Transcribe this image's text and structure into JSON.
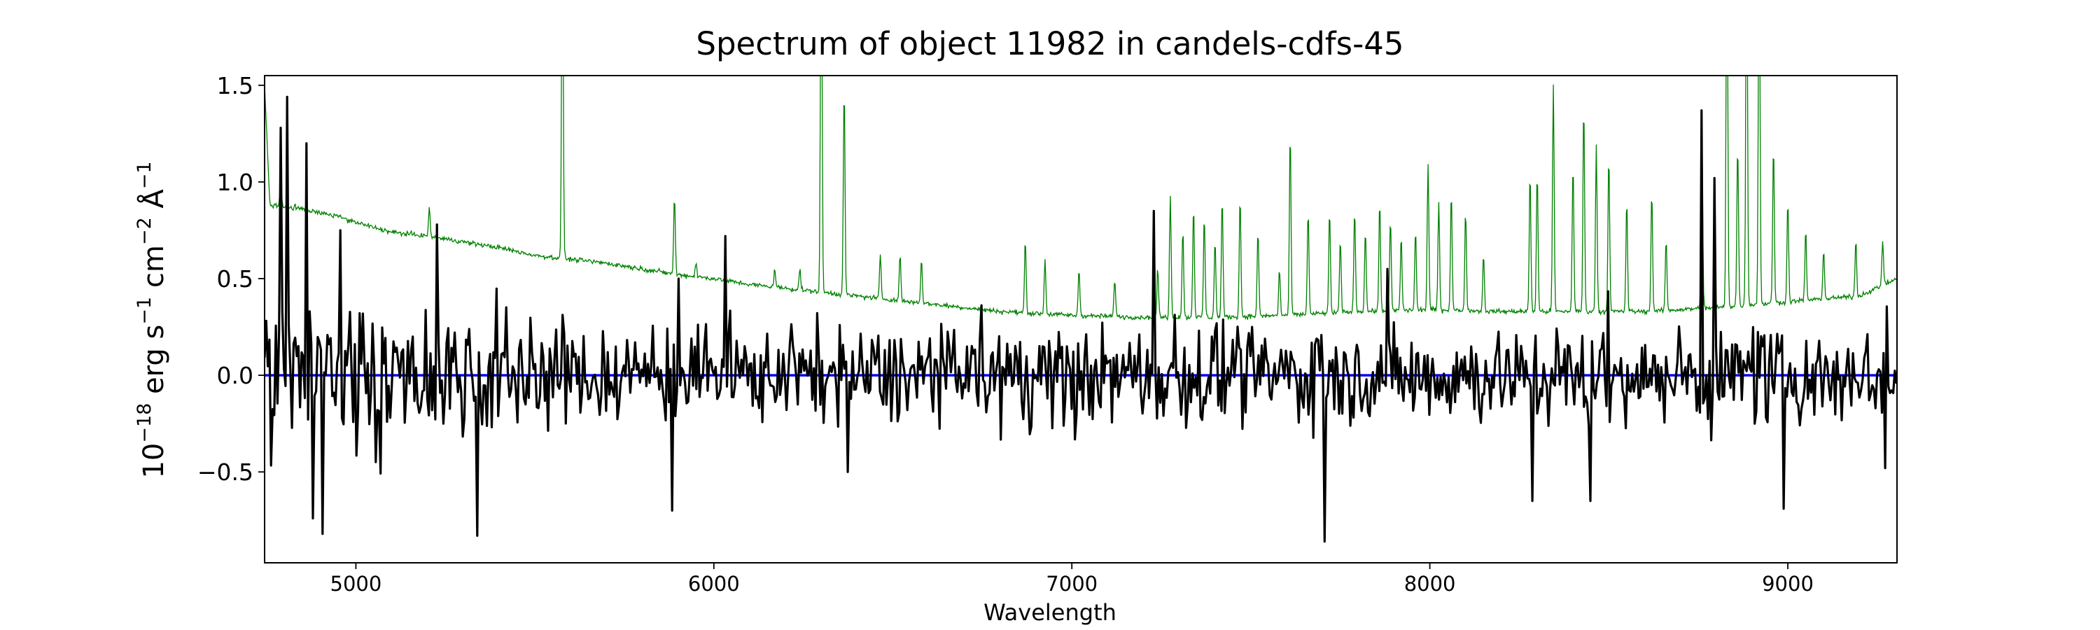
{
  "chart_data": {
    "type": "line",
    "title": "Spectrum of object 11982 in candels-cdfs-45",
    "xlabel": "Wavelength",
    "ylabel": {
      "base": "10",
      "exp": "−18",
      "p1": " erg s",
      "e1": "−1",
      "p2": " cm",
      "e2": "−2",
      "p3": " Å",
      "e3": "−1"
    },
    "xlim": [
      4745,
      9305
    ],
    "ylim": [
      -0.97,
      1.55
    ],
    "x_ticks": [
      5000,
      6000,
      7000,
      8000,
      9000
    ],
    "x_tick_labels": [
      "5000",
      "6000",
      "7000",
      "8000",
      "9000"
    ],
    "y_ticks": [
      -0.5,
      0.0,
      0.5,
      1.0,
      1.5
    ],
    "y_tick_labels": [
      "−0.5",
      "0.0",
      "0.5",
      "1.0",
      "1.5"
    ],
    "grid": false,
    "series": [
      {
        "role": "continuum",
        "color": "#008000",
        "points": [
          [
            4745,
            1.5
          ],
          [
            4760,
            0.88
          ],
          [
            4800,
            0.87
          ],
          [
            4850,
            0.86
          ],
          [
            4900,
            0.84
          ],
          [
            4950,
            0.82
          ],
          [
            5000,
            0.79
          ],
          [
            5100,
            0.74
          ],
          [
            5200,
            0.72
          ],
          [
            5300,
            0.69
          ],
          [
            5400,
            0.66
          ],
          [
            5500,
            0.62
          ],
          [
            5600,
            0.6
          ],
          [
            5700,
            0.58
          ],
          [
            5800,
            0.55
          ],
          [
            5900,
            0.52
          ],
          [
            6000,
            0.5
          ],
          [
            6100,
            0.47
          ],
          [
            6200,
            0.45
          ],
          [
            6300,
            0.43
          ],
          [
            6400,
            0.41
          ],
          [
            6500,
            0.39
          ],
          [
            6600,
            0.37
          ],
          [
            6700,
            0.35
          ],
          [
            6800,
            0.33
          ],
          [
            7000,
            0.31
          ],
          [
            7200,
            0.3
          ],
          [
            7400,
            0.3
          ],
          [
            7600,
            0.31
          ],
          [
            7800,
            0.33
          ],
          [
            8000,
            0.34
          ],
          [
            8200,
            0.33
          ],
          [
            8400,
            0.33
          ],
          [
            8600,
            0.33
          ],
          [
            8800,
            0.35
          ],
          [
            9000,
            0.38
          ],
          [
            9200,
            0.41
          ],
          [
            9305,
            0.5
          ]
        ],
        "emission_lines": [
          [
            4790,
            1.0
          ],
          [
            4830,
            0.88
          ],
          [
            4862,
            0.86
          ],
          [
            5205,
            0.86
          ],
          [
            5577,
            2.5
          ],
          [
            5890,
            0.92
          ],
          [
            5950,
            0.58
          ],
          [
            6170,
            0.55
          ],
          [
            6240,
            0.55
          ],
          [
            6300,
            2.5
          ],
          [
            6364,
            1.5
          ],
          [
            6465,
            0.62
          ],
          [
            6520,
            0.62
          ],
          [
            6580,
            0.6
          ],
          [
            6870,
            0.7
          ],
          [
            6925,
            0.6
          ],
          [
            7020,
            0.55
          ],
          [
            7120,
            0.5
          ],
          [
            7240,
            0.55
          ],
          [
            7275,
            0.93
          ],
          [
            7310,
            0.75
          ],
          [
            7340,
            0.88
          ],
          [
            7370,
            0.82
          ],
          [
            7400,
            0.7
          ],
          [
            7420,
            0.92
          ],
          [
            7470,
            0.92
          ],
          [
            7520,
            0.75
          ],
          [
            7580,
            0.55
          ],
          [
            7610,
            1.25
          ],
          [
            7660,
            0.85
          ],
          [
            7720,
            0.85
          ],
          [
            7750,
            0.7
          ],
          [
            7790,
            0.86
          ],
          [
            7820,
            0.75
          ],
          [
            7860,
            0.9
          ],
          [
            7890,
            0.8
          ],
          [
            7920,
            0.72
          ],
          [
            7960,
            0.75
          ],
          [
            7995,
            1.1
          ],
          [
            8025,
            0.9
          ],
          [
            8060,
            0.95
          ],
          [
            8100,
            0.85
          ],
          [
            8150,
            0.62
          ],
          [
            8280,
            1.05
          ],
          [
            8300,
            1.05
          ],
          [
            8345,
            1.5
          ],
          [
            8400,
            1.1
          ],
          [
            8430,
            1.4
          ],
          [
            8465,
            1.2
          ],
          [
            8500,
            1.15
          ],
          [
            8550,
            0.9
          ],
          [
            8620,
            0.95
          ],
          [
            8660,
            0.7
          ],
          [
            8760,
            1.2
          ],
          [
            8830,
            2.5
          ],
          [
            8860,
            1.2
          ],
          [
            8885,
            2.5
          ],
          [
            8920,
            2.5
          ],
          [
            8960,
            1.2
          ],
          [
            9000,
            0.9
          ],
          [
            9050,
            0.75
          ],
          [
            9100,
            0.65
          ],
          [
            9190,
            0.7
          ],
          [
            9265,
            0.7
          ]
        ]
      },
      {
        "role": "model",
        "color": "#0000ff",
        "value": 0.0
      },
      {
        "role": "flux",
        "color": "#000000",
        "features": [
          [
            4790,
            1.28
          ],
          [
            4810,
            1.44
          ],
          [
            4862,
            1.2
          ],
          [
            4880,
            -0.74
          ],
          [
            4905,
            -0.82
          ],
          [
            4955,
            0.75
          ],
          [
            5225,
            0.78
          ],
          [
            5340,
            -0.83
          ],
          [
            5882,
            -0.7
          ],
          [
            5900,
            0.5
          ],
          [
            6030,
            0.72
          ],
          [
            6375,
            -0.5
          ],
          [
            7230,
            0.85
          ],
          [
            7708,
            -0.86
          ],
          [
            7883,
            0.55
          ],
          [
            8285,
            -0.65
          ],
          [
            8450,
            -0.65
          ],
          [
            8760,
            1.37
          ],
          [
            8795,
            1.02
          ],
          [
            8990,
            -0.69
          ],
          [
            9270,
            -0.48
          ]
        ]
      }
    ]
  }
}
